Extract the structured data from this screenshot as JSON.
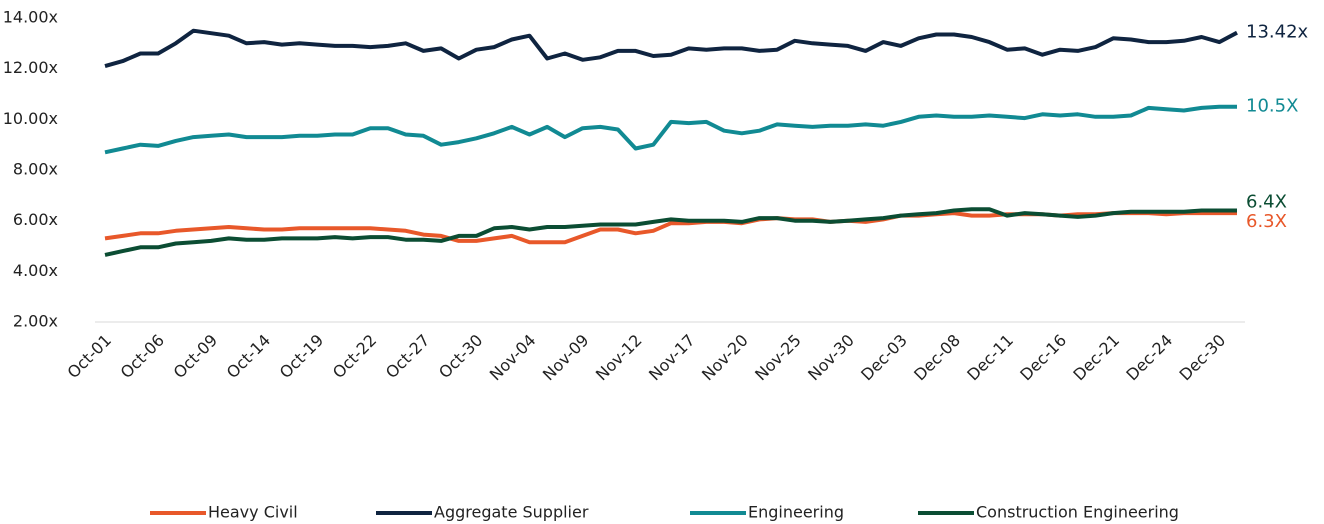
{
  "chart_data": {
    "type": "line",
    "categories": [
      "Oct-01",
      null,
      null,
      "Oct-06",
      null,
      null,
      "Oct-09",
      null,
      null,
      "Oct-14",
      null,
      null,
      "Oct-19",
      null,
      null,
      "Oct-22",
      null,
      null,
      "Oct-27",
      null,
      null,
      "Oct-30",
      null,
      null,
      "Nov-04",
      null,
      null,
      "Nov-09",
      null,
      null,
      "Nov-12",
      null,
      null,
      "Nov-17",
      null,
      null,
      "Nov-20",
      null,
      null,
      "Nov-25",
      null,
      null,
      "Nov-30",
      null,
      null,
      "Dec-03",
      null,
      null,
      "Dec-08",
      null,
      null,
      "Dec-11",
      null,
      null,
      "Dec-16",
      null,
      null,
      "Dec-21",
      null,
      null,
      "Dec-24",
      null,
      null,
      "Dec-30",
      null
    ],
    "series": [
      {
        "name": "Heavy Civil",
        "color": "#e8582a",
        "end_label": "6.3X",
        "values": [
          5.3,
          5.4,
          5.5,
          5.5,
          5.6,
          5.65,
          5.7,
          5.75,
          5.7,
          5.65,
          5.65,
          5.7,
          5.7,
          5.7,
          5.7,
          5.7,
          5.65,
          5.6,
          5.45,
          5.4,
          5.2,
          5.2,
          5.3,
          5.4,
          5.15,
          5.15,
          5.15,
          5.4,
          5.65,
          5.65,
          5.5,
          5.6,
          5.9,
          5.9,
          5.95,
          5.95,
          5.9,
          6.05,
          6.1,
          6.05,
          6.05,
          5.95,
          6.0,
          5.95,
          6.05,
          6.2,
          6.2,
          6.25,
          6.3,
          6.2,
          6.2,
          6.25,
          6.25,
          6.25,
          6.2,
          6.25,
          6.25,
          6.3,
          6.3,
          6.3,
          6.25,
          6.3,
          6.3,
          6.3,
          6.3
        ]
      },
      {
        "name": "Aggregate Supplier",
        "color": "#0f2440",
        "end_label": "13.42x",
        "values": [
          12.1,
          12.3,
          12.6,
          12.6,
          13.0,
          13.5,
          13.4,
          13.3,
          13.0,
          13.05,
          12.95,
          13.0,
          12.95,
          12.9,
          12.9,
          12.85,
          12.9,
          13.0,
          12.7,
          12.8,
          12.4,
          12.75,
          12.85,
          13.15,
          13.3,
          12.4,
          12.6,
          12.35,
          12.45,
          12.7,
          12.7,
          12.5,
          12.55,
          12.8,
          12.75,
          12.8,
          12.8,
          12.7,
          12.75,
          13.1,
          13.0,
          12.95,
          12.9,
          12.7,
          13.05,
          12.9,
          13.2,
          13.35,
          13.35,
          13.25,
          13.05,
          12.75,
          12.8,
          12.55,
          12.75,
          12.7,
          12.85,
          13.2,
          13.15,
          13.05,
          13.05,
          13.1,
          13.25,
          13.05,
          13.42
        ]
      },
      {
        "name": "Engineering",
        "color": "#118a93",
        "end_label": "10.5X",
        "values": [
          8.7,
          8.85,
          9.0,
          8.95,
          9.15,
          9.3,
          9.35,
          9.4,
          9.3,
          9.3,
          9.3,
          9.35,
          9.35,
          9.4,
          9.4,
          9.65,
          9.65,
          9.4,
          9.35,
          9.0,
          9.1,
          9.25,
          9.45,
          9.7,
          9.4,
          9.7,
          9.3,
          9.65,
          9.7,
          9.6,
          8.85,
          9.0,
          9.9,
          9.85,
          9.9,
          9.55,
          9.45,
          9.55,
          9.8,
          9.75,
          9.7,
          9.75,
          9.75,
          9.8,
          9.75,
          9.9,
          10.1,
          10.15,
          10.1,
          10.1,
          10.15,
          10.1,
          10.05,
          10.2,
          10.15,
          10.2,
          10.1,
          10.1,
          10.15,
          10.45,
          10.4,
          10.35,
          10.45,
          10.5,
          10.5
        ]
      },
      {
        "name": "Construction Engineering",
        "color": "#0b4d33",
        "end_label": "6.4X",
        "values": [
          4.65,
          4.8,
          4.95,
          4.95,
          5.1,
          5.15,
          5.2,
          5.3,
          5.25,
          5.25,
          5.3,
          5.3,
          5.3,
          5.35,
          5.3,
          5.35,
          5.35,
          5.25,
          5.25,
          5.2,
          5.4,
          5.4,
          5.7,
          5.75,
          5.65,
          5.75,
          5.75,
          5.8,
          5.85,
          5.85,
          5.85,
          5.95,
          6.05,
          6.0,
          6.0,
          6.0,
          5.95,
          6.1,
          6.1,
          6.0,
          6.0,
          5.95,
          6.0,
          6.05,
          6.1,
          6.2,
          6.25,
          6.3,
          6.4,
          6.45,
          6.45,
          6.2,
          6.3,
          6.25,
          6.2,
          6.15,
          6.2,
          6.3,
          6.35,
          6.35,
          6.35,
          6.35,
          6.4,
          6.4,
          6.4
        ]
      }
    ],
    "ylim": [
      2,
      14
    ],
    "yticks": [
      {
        "value": 2,
        "label": "2.00x"
      },
      {
        "value": 4,
        "label": "4.00x"
      },
      {
        "value": 6,
        "label": "6.00x"
      },
      {
        "value": 8,
        "label": "8.00x"
      },
      {
        "value": 10,
        "label": "10.00x"
      },
      {
        "value": 12,
        "label": "12.00x"
      },
      {
        "value": 14,
        "label": "14.00x"
      }
    ],
    "legend": "bottom"
  }
}
